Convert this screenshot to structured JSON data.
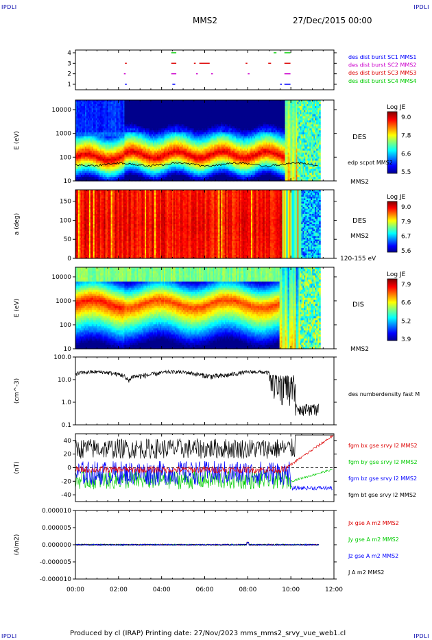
{
  "corners": {
    "tl": "IPDLI",
    "tr": "IPDLI",
    "bl": "IPDLI",
    "br": "IPDLI"
  },
  "header": {
    "spacecraft": "MMS2",
    "date": "27/Dec/2015 00:00"
  },
  "footer": {
    "text": "Produced by cl (IRAP)   Printing date: 27/Nov/2023   mms_mms2_srvy_vue_web1.cl"
  },
  "chart_data": [
    {
      "type": "scatter",
      "name": "burst availability",
      "yticks": [
        "4",
        "3",
        "2",
        "1"
      ],
      "legend": [
        {
          "label": "des dist burst SC1 MMS1",
          "color": "#0000ff"
        },
        {
          "label": "des dist burst SC2 MMS2",
          "color": "#cc00cc"
        },
        {
          "label": "des dist burst SC3 MMS3",
          "color": "#dd0000"
        },
        {
          "label": "des dist burst SC4 MMS4",
          "color": "#00cc00"
        }
      ],
      "segments_hours": [
        {
          "level": 4,
          "color": "#00cc00",
          "ranges": [
            [
              4.45,
              4.65
            ],
            [
              9.2,
              9.3
            ],
            [
              9.7,
              9.95
            ]
          ]
        },
        {
          "level": 3,
          "color": "#dd0000",
          "ranges": [
            [
              2.3,
              2.35
            ],
            [
              4.45,
              4.65
            ],
            [
              5.5,
              5.55
            ],
            [
              5.75,
              6.2
            ],
            [
              7.9,
              7.95
            ],
            [
              8.95,
              9.05
            ],
            [
              9.7,
              9.95
            ]
          ]
        },
        {
          "level": 2,
          "color": "#cc00cc",
          "ranges": [
            [
              2.25,
              2.3
            ],
            [
              4.45,
              4.65
            ],
            [
              5.6,
              5.65
            ],
            [
              6.3,
              6.35
            ],
            [
              8.0,
              8.05
            ],
            [
              9.7,
              9.95
            ]
          ]
        },
        {
          "level": 1,
          "color": "#0000ff",
          "ranges": [
            [
              2.3,
              2.35
            ],
            [
              4.5,
              4.6
            ],
            [
              9.5,
              9.55
            ],
            [
              9.7,
              9.95
            ]
          ]
        }
      ]
    },
    {
      "type": "heatmap",
      "ylabel": "E (eV)",
      "yticks": [
        "10000",
        "1000",
        "100",
        "10"
      ],
      "label": "DES",
      "extra_labels": [
        "edp scpot MMS2",
        "MMS2"
      ],
      "colorbar": {
        "title": "Log JE",
        "ticks": [
          "9.0",
          "7.8",
          "6.6",
          "5.5"
        ]
      }
    },
    {
      "type": "heatmap",
      "ylabel": "a (deg)",
      "yticks": [
        "150",
        "100",
        "50",
        "0"
      ],
      "label": "DES",
      "extra_labels": [
        "MMS2",
        "120-155 eV"
      ],
      "colorbar": {
        "title": "Log JE",
        "ticks": [
          "9.0",
          "7.9",
          "6.7",
          "5.6"
        ]
      }
    },
    {
      "type": "heatmap",
      "ylabel": "E (eV)",
      "yticks": [
        "10000",
        "1000",
        "100",
        "10"
      ],
      "label": "DIS",
      "extra_labels": [
        "MMS2"
      ],
      "colorbar": {
        "title": "Log JE",
        "ticks": [
          "7.9",
          "6.6",
          "5.2",
          "3.9"
        ]
      }
    },
    {
      "type": "line",
      "ylabel": "(cm^-3)",
      "yticks": [
        "100.0",
        "10.0",
        "1.0",
        "0.1"
      ],
      "ylim": [
        0.1,
        100
      ],
      "log": true,
      "series": [
        {
          "name": "des numberdensity fast M",
          "color": "#000000"
        }
      ]
    },
    {
      "type": "line",
      "ylabel": "(nT)",
      "yticks": [
        "40",
        "20",
        "0",
        "-20",
        "-40"
      ],
      "ylim": [
        -50,
        50
      ],
      "series": [
        {
          "name": "fgm bx gse srvy l2 MMS2",
          "color": "#dd0000"
        },
        {
          "name": "fgm by gse srvy l2 MMS2",
          "color": "#00cc00"
        },
        {
          "name": "fgm bz gse srvy l2 MMS2",
          "color": "#0000ff"
        },
        {
          "name": "fgm bt gse srvy l2 MMS2",
          "color": "#000000"
        }
      ]
    },
    {
      "type": "line",
      "ylabel": "(A/m2)",
      "yticks": [
        "0.000010",
        "0.000005",
        "0.000000",
        "-0.000005",
        "-0.000010"
      ],
      "ylim": [
        -1e-05,
        1e-05
      ],
      "series": [
        {
          "name": "Jx gse A m2 MMS2",
          "color": "#dd0000"
        },
        {
          "name": "Jy gse A m2 MMS2",
          "color": "#00cc00"
        },
        {
          "name": "Jz gse A m2 MMS2",
          "color": "#0000ff"
        },
        {
          "name": "J A m2 MMS2",
          "color": "#000000"
        }
      ]
    }
  ],
  "xaxis": {
    "ticks": [
      "00:00",
      "02:00",
      "04:00",
      "06:00",
      "08:00",
      "10:00",
      "12:00"
    ]
  }
}
